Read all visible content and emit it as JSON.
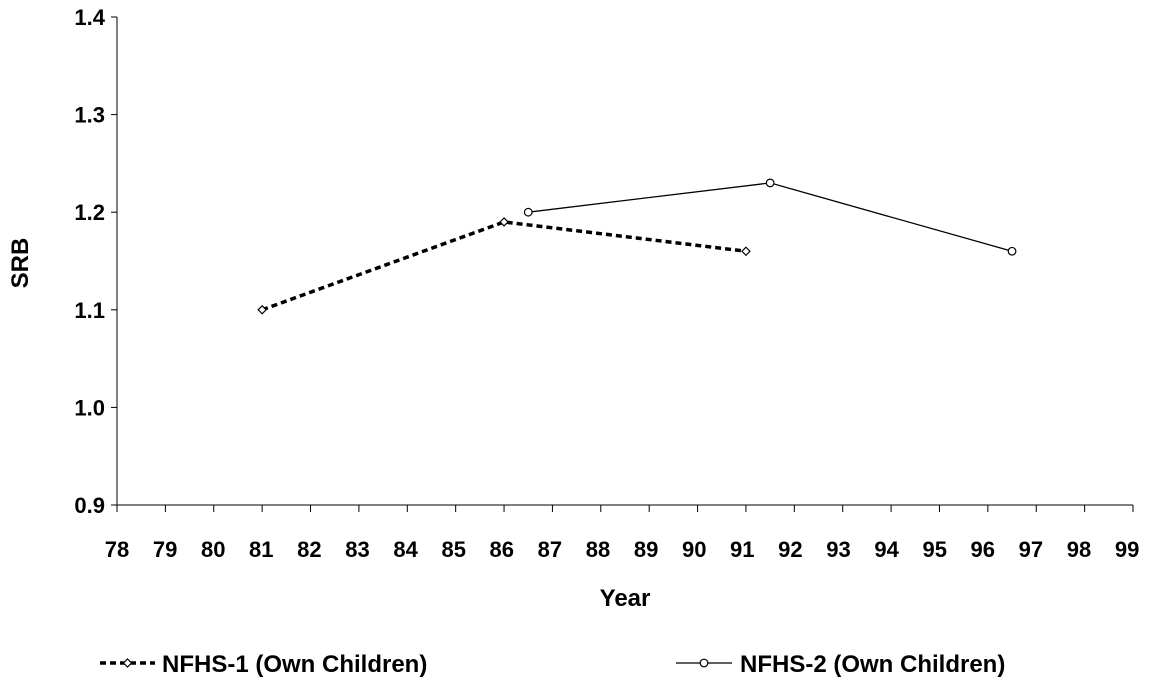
{
  "chart_data": {
    "type": "line",
    "xlabel": "Year",
    "ylabel": "SRB",
    "xlim": [
      78,
      99
    ],
    "ylim": [
      0.9,
      1.4
    ],
    "x_ticks": [
      "78",
      "79",
      "80",
      "81",
      "82",
      "83",
      "84",
      "85",
      "86",
      "87",
      "88",
      "89",
      "90",
      "91",
      "92",
      "93",
      "94",
      "95",
      "96",
      "97",
      "98",
      "99"
    ],
    "y_ticks": [
      "0.9",
      "1.0",
      "1.1",
      "1.2",
      "1.3",
      "1.4"
    ],
    "grid": false,
    "legend_position": "bottom",
    "series": [
      {
        "name": "NFHS-1 (Own Children)",
        "line_style": "dashed",
        "marker": "diamond",
        "color": "#000000",
        "x": [
          81,
          86,
          91
        ],
        "y": [
          1.1,
          1.19,
          1.16
        ]
      },
      {
        "name": "NFHS-2 (Own Children)",
        "line_style": "solid",
        "marker": "circle",
        "color": "#000000",
        "x": [
          86.5,
          91.5,
          96.5
        ],
        "y": [
          1.2,
          1.23,
          1.16
        ]
      }
    ]
  }
}
